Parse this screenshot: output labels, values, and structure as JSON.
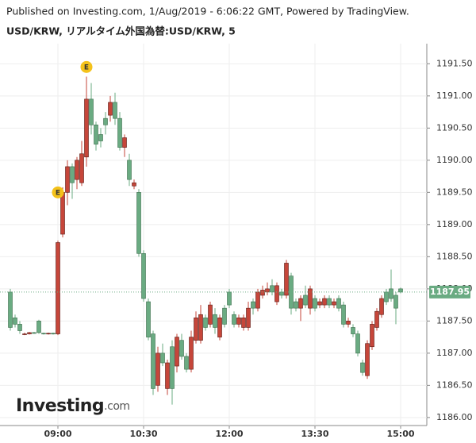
{
  "chart_data": {
    "type": "candlestick",
    "published": "Published on Investing.com, 1/Aug/2019 - 6:06:22 GMT, Powered by TradingView.",
    "title": "USD/KRW, リアルタイム外国為替:USD/KRW, 5",
    "logo": "Investing",
    "logo_suffix": ".com",
    "x": [
      "08:10",
      "08:15",
      "08:20",
      "08:25",
      "08:30",
      "08:35",
      "08:40",
      "08:45",
      "08:50",
      "08:55",
      "09:00",
      "09:05",
      "09:10",
      "09:15",
      "09:20",
      "09:25",
      "09:30",
      "09:35",
      "09:40",
      "09:45",
      "09:50",
      "09:55",
      "10:00",
      "10:05",
      "10:10",
      "10:15",
      "10:20",
      "10:25",
      "10:30",
      "10:35",
      "10:40",
      "10:45",
      "10:50",
      "10:55",
      "11:00",
      "11:05",
      "11:10",
      "11:15",
      "11:20",
      "11:25",
      "11:30",
      "11:35",
      "11:40",
      "11:45",
      "11:50",
      "11:55",
      "12:00",
      "12:05",
      "12:10",
      "12:15",
      "12:20",
      "12:25",
      "12:30",
      "12:35",
      "12:40",
      "12:45",
      "12:50",
      "12:55",
      "13:00",
      "13:05",
      "13:10",
      "13:15",
      "13:20",
      "13:25",
      "13:30",
      "13:35",
      "13:40",
      "13:45",
      "13:50",
      "13:55",
      "14:00",
      "14:05",
      "14:10",
      "14:15",
      "14:20",
      "14:25",
      "14:30",
      "14:35",
      "14:40",
      "14:45",
      "14:50",
      "14:55",
      "15:00"
    ],
    "open": [
      1187.95,
      1187.55,
      1187.45,
      1187.3,
      1187.3,
      1187.32,
      1187.5,
      1187.31,
      1187.3,
      1187.31,
      1187.3,
      1188.85,
      1189.5,
      1189.9,
      1189.7,
      1189.65,
      1190.05,
      1190.95,
      1190.55,
      1190.4,
      1190.65,
      1190.7,
      1190.9,
      1190.65,
      1190.2,
      1190.0,
      1189.6,
      1189.5,
      1188.55,
      1187.8,
      1187.3,
      1186.5,
      1187.0,
      1186.45,
      1187.1,
      1186.8,
      1187.2,
      1186.95,
      1186.75,
      1187.2,
      1187.2,
      1187.55,
      1187.45,
      1187.6,
      1187.25,
      1187.7,
      1187.95,
      1187.6,
      1187.45,
      1187.4,
      1187.4,
      1187.8,
      1187.7,
      1187.9,
      1187.95,
      1188.05,
      1187.8,
      1187.95,
      1187.9,
      1188.2,
      1187.8,
      1187.7,
      1187.9,
      1187.7,
      1187.85,
      1187.75,
      1187.75,
      1187.85,
      1187.75,
      1187.85,
      1187.75,
      1187.45,
      1187.4,
      1187.3,
      1186.85,
      1186.65,
      1187.1,
      1187.4,
      1187.6,
      1187.95,
      1188.0,
      1187.9,
      1188.0
    ],
    "high": [
      1188.0,
      1187.6,
      1187.5,
      1187.32,
      1187.33,
      1187.33,
      1187.52,
      1187.32,
      1187.32,
      1187.32,
      1188.75,
      1189.58,
      1190.0,
      1189.95,
      1190.05,
      1190.3,
      1191.3,
      1191.2,
      1190.6,
      1190.5,
      1190.75,
      1191.0,
      1191.05,
      1190.75,
      1190.4,
      1190.1,
      1189.7,
      1189.55,
      1188.6,
      1187.85,
      1187.35,
      1187.1,
      1187.15,
      1186.9,
      1187.2,
      1187.3,
      1187.3,
      1187.0,
      1187.35,
      1187.65,
      1187.75,
      1187.6,
      1187.8,
      1187.7,
      1187.6,
      1187.75,
      1188.0,
      1187.65,
      1187.6,
      1187.6,
      1187.8,
      1187.85,
      1188.0,
      1188.05,
      1188.1,
      1188.15,
      1188.1,
      1188.0,
      1188.45,
      1188.25,
      1187.85,
      1187.9,
      1188.05,
      1188.05,
      1187.9,
      1187.85,
      1187.9,
      1187.9,
      1187.85,
      1187.9,
      1187.8,
      1187.55,
      1187.45,
      1187.35,
      1186.9,
      1187.2,
      1187.5,
      1187.7,
      1187.9,
      1188.0,
      1188.3,
      1187.95,
      1188.02
    ],
    "low": [
      1187.35,
      1187.4,
      1187.3,
      1187.28,
      1187.29,
      1187.3,
      1187.3,
      1187.29,
      1187.29,
      1187.29,
      1187.28,
      1188.8,
      1189.3,
      1189.4,
      1189.55,
      1189.6,
      1189.9,
      1190.4,
      1190.15,
      1190.2,
      1190.4,
      1190.6,
      1190.55,
      1190.15,
      1190.05,
      1189.6,
      1189.55,
      1188.5,
      1187.8,
      1187.2,
      1186.35,
      1186.4,
      1186.8,
      1186.35,
      1186.2,
      1186.7,
      1186.9,
      1186.7,
      1186.7,
      1187.15,
      1187.15,
      1187.35,
      1187.4,
      1187.3,
      1187.2,
      1187.4,
      1187.7,
      1187.4,
      1187.4,
      1187.35,
      1187.35,
      1187.6,
      1187.65,
      1187.85,
      1187.9,
      1187.9,
      1187.75,
      1187.85,
      1187.85,
      1187.6,
      1187.65,
      1187.5,
      1187.7,
      1187.6,
      1187.65,
      1187.7,
      1187.7,
      1187.7,
      1187.7,
      1187.65,
      1187.4,
      1187.4,
      1187.25,
      1186.95,
      1186.65,
      1186.6,
      1187.05,
      1187.35,
      1187.55,
      1187.75,
      1187.8,
      1187.45,
      1187.93
    ],
    "close": [
      1187.4,
      1187.45,
      1187.35,
      1187.3,
      1187.32,
      1187.31,
      1187.32,
      1187.3,
      1187.31,
      1187.3,
      1188.72,
      1189.5,
      1189.9,
      1189.65,
      1190.0,
      1190.1,
      1190.95,
      1190.55,
      1190.25,
      1190.3,
      1190.55,
      1190.9,
      1190.65,
      1190.2,
      1190.35,
      1189.7,
      1189.65,
      1188.55,
      1187.85,
      1187.25,
      1186.45,
      1187.0,
      1186.85,
      1186.85,
      1186.45,
      1187.25,
      1186.95,
      1186.75,
      1187.25,
      1187.55,
      1187.6,
      1187.4,
      1187.75,
      1187.4,
      1187.55,
      1187.45,
      1187.75,
      1187.45,
      1187.55,
      1187.55,
      1187.7,
      1187.7,
      1187.95,
      1187.98,
      1188.0,
      1187.95,
      1188.05,
      1187.9,
      1188.4,
      1187.7,
      1187.7,
      1187.85,
      1187.75,
      1188.0,
      1187.7,
      1187.8,
      1187.85,
      1187.75,
      1187.8,
      1187.7,
      1187.45,
      1187.5,
      1187.3,
      1187.0,
      1186.7,
      1187.15,
      1187.45,
      1187.65,
      1187.85,
      1187.8,
      1187.85,
      1187.7,
      1187.95
    ],
    "up_color": "#c6463a",
    "down_color": "#6aab82",
    "events": [
      {
        "x": "09:00",
        "label": "E",
        "value": 1189.5
      },
      {
        "x": "09:30",
        "label": "E",
        "value": 1191.45
      }
    ],
    "last_price": 1187.95,
    "ylim": [
      1185.875,
      1191.8125
    ],
    "yticks": [
      {
        "value": 1186,
        "label": "1186.00"
      },
      {
        "value": 1186.5,
        "label": "1186.50"
      },
      {
        "value": 1187,
        "label": "1187.00"
      },
      {
        "value": 1187.5,
        "label": "1187.50"
      },
      {
        "value": 1188,
        "label": "1188.00"
      },
      {
        "value": 1188.5,
        "label": "1188.50"
      },
      {
        "value": 1189,
        "label": "1189.00"
      },
      {
        "value": 1189.5,
        "label": "1189.50"
      },
      {
        "value": 1190,
        "label": "1190.00"
      },
      {
        "value": 1190.5,
        "label": "1190.50"
      },
      {
        "value": 1191,
        "label": "1191.00"
      },
      {
        "value": 1191.5,
        "label": "1191.50"
      }
    ],
    "xticks": [
      "09:00",
      "10:30",
      "12:00",
      "13:30",
      "15:00"
    ],
    "grid": true
  }
}
